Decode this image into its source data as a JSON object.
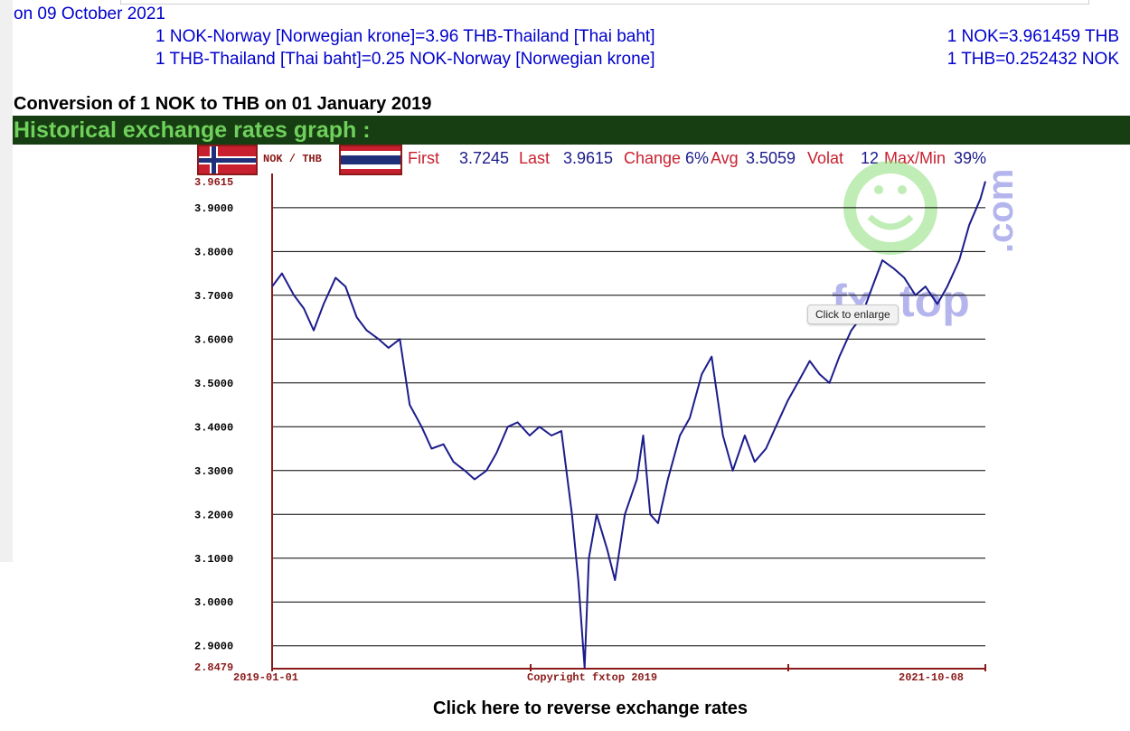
{
  "header": {
    "date_text": "on 09 October 2021",
    "rate_line_1": "1 NOK-Norway [Norwegian krone]=3.96 THB-Thailand [Thai baht]",
    "rate_line_2": "1 THB-Thailand [Thai baht]=0.25 NOK-Norway [Norwegian krone]",
    "rate_exact_1": "1 NOK=3.961459 THB",
    "rate_exact_2": "1 THB=0.252432 NOK"
  },
  "conversion_title": "Conversion of 1 NOK to THB on 01 January 2019",
  "historical_title": "Historical exchange rates graph :",
  "tooltip": "Click to enlarge",
  "reverse_link": "Click here to reverse exchange rates",
  "colors": {
    "line": "#1c1c8c",
    "dark_red": "#8b1a1a",
    "header_green": "#173d12",
    "title_green": "#6fd15b",
    "link_blue": "#0000cc"
  },
  "chart_stats": {
    "pair_label": "NOK / THB",
    "first_label": "First",
    "first_value": "3.7245",
    "last_label": "Last",
    "last_value": "3.9615",
    "change_label": "Change",
    "change_value": "6%",
    "avg_label": "Avg",
    "avg_value": "3.5059",
    "volat_label": "Volat",
    "volat_value": "12",
    "maxmin_label": "Max/Min",
    "maxmin_value": "39%"
  },
  "chart_data": {
    "type": "line",
    "x_start_label": "2019-01-01",
    "x_end_label": "2021-10-08",
    "copyright": "Copyright fxtop 2019",
    "watermark": "fxtop.com",
    "y_max_label": "3.9615",
    "y_min_label": "2.8479",
    "ylim": [
      2.8479,
      3.9615
    ],
    "yticks": [
      "3.9000",
      "3.8000",
      "3.7000",
      "3.6000",
      "3.5000",
      "3.4000",
      "3.3000",
      "3.2000",
      "3.1000",
      "3.0000",
      "2.9000"
    ],
    "ytick_values": [
      3.9,
      3.8,
      3.7,
      3.6,
      3.5,
      3.4,
      3.3,
      3.2,
      3.1,
      3.0,
      2.9
    ],
    "x_range": [
      "2019-01-01",
      "2021-10-08"
    ],
    "series": [
      {
        "values": [
          [
            "2019-01-01",
            3.72
          ],
          [
            "2019-01-15",
            3.75
          ],
          [
            "2019-02-01",
            3.7
          ],
          [
            "2019-02-15",
            3.67
          ],
          [
            "2019-03-01",
            3.62
          ],
          [
            "2019-03-15",
            3.68
          ],
          [
            "2019-04-01",
            3.74
          ],
          [
            "2019-04-15",
            3.72
          ],
          [
            "2019-05-01",
            3.65
          ],
          [
            "2019-05-15",
            3.62
          ],
          [
            "2019-06-01",
            3.6
          ],
          [
            "2019-06-15",
            3.58
          ],
          [
            "2019-07-01",
            3.6
          ],
          [
            "2019-07-15",
            3.45
          ],
          [
            "2019-08-01",
            3.4
          ],
          [
            "2019-08-15",
            3.35
          ],
          [
            "2019-09-01",
            3.36
          ],
          [
            "2019-09-15",
            3.32
          ],
          [
            "2019-10-01",
            3.3
          ],
          [
            "2019-10-15",
            3.28
          ],
          [
            "2019-11-01",
            3.3
          ],
          [
            "2019-11-15",
            3.34
          ],
          [
            "2019-12-01",
            3.4
          ],
          [
            "2019-12-15",
            3.41
          ],
          [
            "2020-01-01",
            3.38
          ],
          [
            "2020-01-15",
            3.4
          ],
          [
            "2020-02-01",
            3.38
          ],
          [
            "2020-02-15",
            3.39
          ],
          [
            "2020-03-01",
            3.2
          ],
          [
            "2020-03-10",
            3.05
          ],
          [
            "2020-03-19",
            2.85
          ],
          [
            "2020-03-25",
            3.1
          ],
          [
            "2020-04-05",
            3.2
          ],
          [
            "2020-04-20",
            3.12
          ],
          [
            "2020-05-01",
            3.05
          ],
          [
            "2020-05-15",
            3.2
          ],
          [
            "2020-06-01",
            3.28
          ],
          [
            "2020-06-10",
            3.38
          ],
          [
            "2020-06-20",
            3.2
          ],
          [
            "2020-07-01",
            3.18
          ],
          [
            "2020-07-15",
            3.28
          ],
          [
            "2020-08-01",
            3.38
          ],
          [
            "2020-08-15",
            3.42
          ],
          [
            "2020-09-01",
            3.52
          ],
          [
            "2020-09-15",
            3.56
          ],
          [
            "2020-10-01",
            3.38
          ],
          [
            "2020-10-15",
            3.3
          ],
          [
            "2020-11-01",
            3.38
          ],
          [
            "2020-11-15",
            3.32
          ],
          [
            "2020-12-01",
            3.35
          ],
          [
            "2020-12-15",
            3.4
          ],
          [
            "2021-01-01",
            3.46
          ],
          [
            "2021-01-15",
            3.5
          ],
          [
            "2021-02-01",
            3.55
          ],
          [
            "2021-02-15",
            3.52
          ],
          [
            "2021-03-01",
            3.5
          ],
          [
            "2021-03-15",
            3.56
          ],
          [
            "2021-04-01",
            3.62
          ],
          [
            "2021-04-15",
            3.65
          ],
          [
            "2021-05-01",
            3.72
          ],
          [
            "2021-05-15",
            3.78
          ],
          [
            "2021-06-01",
            3.76
          ],
          [
            "2021-06-15",
            3.74
          ],
          [
            "2021-07-01",
            3.7
          ],
          [
            "2021-07-15",
            3.72
          ],
          [
            "2021-08-01",
            3.68
          ],
          [
            "2021-08-15",
            3.72
          ],
          [
            "2021-09-01",
            3.78
          ],
          [
            "2021-09-15",
            3.86
          ],
          [
            "2021-10-01",
            3.92
          ],
          [
            "2021-10-08",
            3.96
          ]
        ]
      }
    ]
  }
}
